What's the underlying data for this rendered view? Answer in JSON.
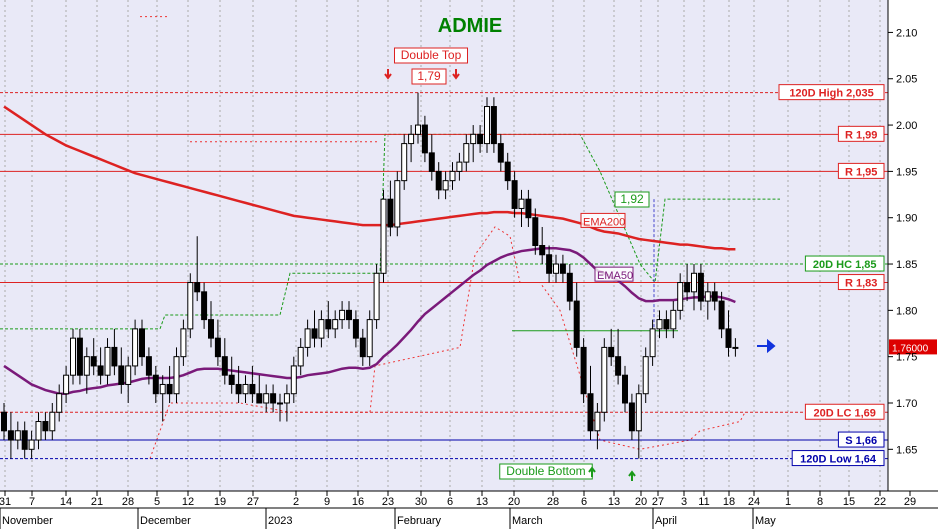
{
  "chart_data": {
    "type": "candlestick",
    "title": "ADMIE",
    "title_color": "#008000",
    "background": "#e9e9f7",
    "grid": "dotted vertical",
    "ylim": [
      1.605,
      2.135
    ],
    "y_ticks": [
      "2.10",
      "2.05",
      "2.00",
      "1.95",
      "1.90",
      "1.85",
      "1.80",
      "1.75",
      "1.70",
      "1.65"
    ],
    "x_day_labels": [
      "31",
      "7",
      "14",
      "21",
      "28",
      "5",
      "12",
      "19",
      "27",
      "2",
      "9",
      "16",
      "23",
      "30",
      "6",
      "13",
      "20",
      "28",
      "6",
      "13",
      "20",
      "27",
      "3",
      "11",
      "18",
      "24",
      "1",
      "8",
      "15",
      "22",
      "29"
    ],
    "x_month_labels": [
      "November",
      "December",
      "2023",
      "February",
      "March",
      "April",
      "May"
    ],
    "last_price": "1.76000",
    "ema_labels": [
      "EMA200",
      "EMA50"
    ],
    "colors": {
      "ema200": "#dd2222",
      "ema50": "#7a1a7a",
      "candle": "#000000",
      "resistance": "#dd2222",
      "support": "#0000aa",
      "band_green": "#1a9a1a",
      "band_red": "#ee3333",
      "dashed_blue": "#4444cc"
    },
    "hlines": [
      {
        "label": "120D High 2,035",
        "value": 2.035,
        "color": "#dd2222",
        "style": "dotted"
      },
      {
        "label": "R 1,99",
        "value": 1.99,
        "color": "#dd2222",
        "style": "solid"
      },
      {
        "label": "R 1,95",
        "value": 1.95,
        "color": "#dd2222",
        "style": "solid"
      },
      {
        "label": "20D HC 1,85",
        "value": 1.85,
        "color": "#1a9a1a",
        "style": "dotted"
      },
      {
        "label": "R 1,83",
        "value": 1.83,
        "color": "#dd2222",
        "style": "solid"
      },
      {
        "label": "20D LC 1,69",
        "value": 1.69,
        "color": "#dd2222",
        "style": "dotted"
      },
      {
        "label": "S 1,66",
        "value": 1.66,
        "color": "#0000aa",
        "style": "solid"
      },
      {
        "label": "120D Low 1,64",
        "value": 1.64,
        "color": "#0000aa",
        "style": "dotted"
      }
    ],
    "annotations": [
      {
        "text": "Double Top",
        "color": "#dd2222"
      },
      {
        "text": "1,79",
        "color": "#dd2222"
      },
      {
        "text": "1,92",
        "color": "#1a9a1a"
      },
      {
        "text": "Double Bottom",
        "color": "#1a9a1a"
      }
    ],
    "candles": [
      [
        1.69,
        1.7,
        1.66,
        1.67
      ],
      [
        1.67,
        1.69,
        1.64,
        1.66
      ],
      [
        1.66,
        1.68,
        1.65,
        1.67
      ],
      [
        1.67,
        1.68,
        1.64,
        1.65
      ],
      [
        1.65,
        1.67,
        1.64,
        1.66
      ],
      [
        1.66,
        1.69,
        1.65,
        1.68
      ],
      [
        1.68,
        1.69,
        1.66,
        1.67
      ],
      [
        1.67,
        1.7,
        1.66,
        1.69
      ],
      [
        1.69,
        1.72,
        1.68,
        1.71
      ],
      [
        1.71,
        1.74,
        1.7,
        1.73
      ],
      [
        1.73,
        1.78,
        1.72,
        1.77
      ],
      [
        1.77,
        1.78,
        1.72,
        1.73
      ],
      [
        1.73,
        1.76,
        1.71,
        1.75
      ],
      [
        1.75,
        1.77,
        1.73,
        1.74
      ],
      [
        1.74,
        1.76,
        1.72,
        1.73
      ],
      [
        1.73,
        1.77,
        1.72,
        1.76
      ],
      [
        1.76,
        1.78,
        1.73,
        1.74
      ],
      [
        1.74,
        1.76,
        1.71,
        1.72
      ],
      [
        1.72,
        1.75,
        1.7,
        1.74
      ],
      [
        1.74,
        1.79,
        1.73,
        1.78
      ],
      [
        1.78,
        1.79,
        1.74,
        1.75
      ],
      [
        1.75,
        1.76,
        1.72,
        1.73
      ],
      [
        1.73,
        1.74,
        1.7,
        1.71
      ],
      [
        1.71,
        1.73,
        1.68,
        1.72
      ],
      [
        1.72,
        1.74,
        1.7,
        1.71
      ],
      [
        1.71,
        1.76,
        1.7,
        1.75
      ],
      [
        1.75,
        1.79,
        1.74,
        1.78
      ],
      [
        1.78,
        1.84,
        1.77,
        1.83
      ],
      [
        1.83,
        1.88,
        1.81,
        1.82
      ],
      [
        1.82,
        1.83,
        1.78,
        1.79
      ],
      [
        1.79,
        1.81,
        1.76,
        1.77
      ],
      [
        1.77,
        1.79,
        1.74,
        1.75
      ],
      [
        1.75,
        1.77,
        1.72,
        1.73
      ],
      [
        1.73,
        1.75,
        1.71,
        1.72
      ],
      [
        1.72,
        1.74,
        1.7,
        1.71
      ],
      [
        1.71,
        1.73,
        1.7,
        1.72
      ],
      [
        1.72,
        1.74,
        1.7,
        1.71
      ],
      [
        1.71,
        1.73,
        1.7,
        1.7
      ],
      [
        1.7,
        1.72,
        1.69,
        1.71
      ],
      [
        1.71,
        1.72,
        1.69,
        1.7
      ],
      [
        1.7,
        1.71,
        1.68,
        1.7
      ],
      [
        1.7,
        1.72,
        1.68,
        1.71
      ],
      [
        1.71,
        1.75,
        1.7,
        1.74
      ],
      [
        1.74,
        1.77,
        1.73,
        1.76
      ],
      [
        1.76,
        1.79,
        1.75,
        1.78
      ],
      [
        1.78,
        1.8,
        1.76,
        1.77
      ],
      [
        1.77,
        1.8,
        1.76,
        1.79
      ],
      [
        1.79,
        1.81,
        1.77,
        1.78
      ],
      [
        1.78,
        1.8,
        1.77,
        1.79
      ],
      [
        1.79,
        1.81,
        1.78,
        1.8
      ],
      [
        1.8,
        1.81,
        1.78,
        1.79
      ],
      [
        1.79,
        1.8,
        1.76,
        1.77
      ],
      [
        1.77,
        1.78,
        1.74,
        1.75
      ],
      [
        1.75,
        1.8,
        1.74,
        1.79
      ],
      [
        1.79,
        1.85,
        1.78,
        1.84
      ],
      [
        1.84,
        1.93,
        1.83,
        1.92
      ],
      [
        1.92,
        1.94,
        1.88,
        1.89
      ],
      [
        1.89,
        1.95,
        1.88,
        1.94
      ],
      [
        1.94,
        1.99,
        1.93,
        1.98
      ],
      [
        1.98,
        2.0,
        1.96,
        1.99
      ],
      [
        1.99,
        2.035,
        1.98,
        2.0
      ],
      [
        2.0,
        2.01,
        1.96,
        1.97
      ],
      [
        1.97,
        1.99,
        1.94,
        1.95
      ],
      [
        1.95,
        1.96,
        1.92,
        1.93
      ],
      [
        1.93,
        1.95,
        1.92,
        1.94
      ],
      [
        1.94,
        1.96,
        1.93,
        1.95
      ],
      [
        1.95,
        1.97,
        1.94,
        1.96
      ],
      [
        1.96,
        1.99,
        1.95,
        1.98
      ],
      [
        1.98,
        2.0,
        1.96,
        1.99
      ],
      [
        1.99,
        2.0,
        1.97,
        1.98
      ],
      [
        1.98,
        2.03,
        1.97,
        2.02
      ],
      [
        2.02,
        2.03,
        1.97,
        1.98
      ],
      [
        1.98,
        1.99,
        1.95,
        1.96
      ],
      [
        1.96,
        1.97,
        1.93,
        1.94
      ],
      [
        1.94,
        1.95,
        1.9,
        1.91
      ],
      [
        1.91,
        1.93,
        1.89,
        1.92
      ],
      [
        1.92,
        1.93,
        1.89,
        1.9
      ],
      [
        1.9,
        1.91,
        1.86,
        1.87
      ],
      [
        1.87,
        1.89,
        1.85,
        1.86
      ],
      [
        1.86,
        1.87,
        1.83,
        1.84
      ],
      [
        1.84,
        1.86,
        1.83,
        1.85
      ],
      [
        1.85,
        1.86,
        1.83,
        1.84
      ],
      [
        1.84,
        1.85,
        1.8,
        1.81
      ],
      [
        1.81,
        1.83,
        1.75,
        1.76
      ],
      [
        1.76,
        1.77,
        1.7,
        1.71
      ],
      [
        1.71,
        1.74,
        1.66,
        1.67
      ],
      [
        1.67,
        1.7,
        1.65,
        1.69
      ],
      [
        1.69,
        1.77,
        1.68,
        1.76
      ],
      [
        1.76,
        1.78,
        1.74,
        1.75
      ],
      [
        1.75,
        1.78,
        1.72,
        1.73
      ],
      [
        1.73,
        1.74,
        1.69,
        1.7
      ],
      [
        1.7,
        1.71,
        1.66,
        1.67
      ],
      [
        1.67,
        1.72,
        1.64,
        1.71
      ],
      [
        1.71,
        1.76,
        1.7,
        1.75
      ],
      [
        1.75,
        1.79,
        1.74,
        1.78
      ],
      [
        1.78,
        1.8,
        1.77,
        1.79
      ],
      [
        1.79,
        1.8,
        1.77,
        1.78
      ],
      [
        1.78,
        1.81,
        1.77,
        1.8
      ],
      [
        1.8,
        1.84,
        1.79,
        1.83
      ],
      [
        1.83,
        1.85,
        1.81,
        1.82
      ],
      [
        1.82,
        1.85,
        1.8,
        1.84
      ],
      [
        1.84,
        1.85,
        1.8,
        1.81
      ],
      [
        1.81,
        1.83,
        1.79,
        1.82
      ],
      [
        1.82,
        1.83,
        1.8,
        1.81
      ],
      [
        1.81,
        1.82,
        1.77,
        1.78
      ],
      [
        1.78,
        1.8,
        1.75,
        1.76
      ],
      [
        1.76,
        1.77,
        1.75,
        1.76
      ]
    ],
    "ema50": [
      1.74,
      1.735,
      1.73,
      1.725,
      1.72,
      1.717,
      1.714,
      1.712,
      1.71,
      1.71,
      1.712,
      1.713,
      1.715,
      1.716,
      1.717,
      1.719,
      1.72,
      1.721,
      1.722,
      1.724,
      1.726,
      1.727,
      1.727,
      1.727,
      1.727,
      1.728,
      1.73,
      1.733,
      1.736,
      1.737,
      1.737,
      1.737,
      1.736,
      1.735,
      1.734,
      1.733,
      1.732,
      1.731,
      1.73,
      1.729,
      1.728,
      1.727,
      1.727,
      1.728,
      1.73,
      1.731,
      1.732,
      1.733,
      1.735,
      1.737,
      1.738,
      1.738,
      1.737,
      1.738,
      1.742,
      1.75,
      1.756,
      1.763,
      1.771,
      1.779,
      1.788,
      1.796,
      1.802,
      1.808,
      1.814,
      1.82,
      1.826,
      1.832,
      1.838,
      1.843,
      1.849,
      1.853,
      1.857,
      1.86,
      1.862,
      1.864,
      1.865,
      1.866,
      1.867,
      1.867,
      1.867,
      1.866,
      1.865,
      1.862,
      1.857,
      1.85,
      1.843,
      1.84,
      1.836,
      1.832,
      1.826,
      1.819,
      1.813,
      1.81,
      1.81,
      1.811,
      1.811,
      1.811,
      1.812,
      1.813,
      1.814,
      1.814,
      1.815,
      1.815,
      1.814,
      1.812,
      1.809
    ],
    "ema200": [
      2.02,
      2.015,
      2.01,
      2.005,
      2.0,
      1.995,
      1.99,
      1.986,
      1.982,
      1.978,
      1.975,
      1.972,
      1.969,
      1.966,
      1.963,
      1.96,
      1.957,
      1.954,
      1.951,
      1.948,
      1.946,
      1.944,
      1.942,
      1.94,
      1.938,
      1.936,
      1.934,
      1.932,
      1.93,
      1.928,
      1.926,
      1.924,
      1.922,
      1.92,
      1.918,
      1.916,
      1.914,
      1.912,
      1.91,
      1.908,
      1.906,
      1.904,
      1.902,
      1.901,
      1.9,
      1.899,
      1.898,
      1.897,
      1.896,
      1.895,
      1.894,
      1.893,
      1.892,
      1.892,
      1.892,
      1.892,
      1.892,
      1.893,
      1.894,
      1.895,
      1.896,
      1.897,
      1.898,
      1.899,
      1.9,
      1.901,
      1.902,
      1.903,
      1.904,
      1.905,
      1.905,
      1.906,
      1.906,
      1.906,
      1.905,
      1.905,
      1.904,
      1.903,
      1.902,
      1.901,
      1.9,
      1.899,
      1.897,
      1.895,
      1.893,
      1.89,
      1.887,
      1.885,
      1.884,
      1.883,
      1.881,
      1.879,
      1.877,
      1.876,
      1.875,
      1.874,
      1.873,
      1.872,
      1.871,
      1.871,
      1.87,
      1.869,
      1.868,
      1.867,
      1.867,
      1.866,
      1.866
    ]
  }
}
